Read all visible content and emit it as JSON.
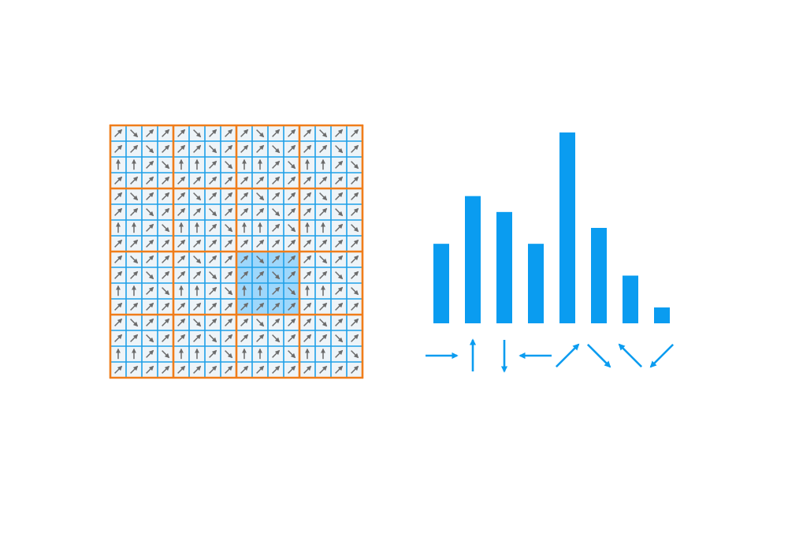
{
  "colors": {
    "background": "#ffffff",
    "cell_fill": "#eef4f8",
    "cell_grid": "#1fa0e8",
    "block_grid": "#f07d1a",
    "gradient_arrow": "#6b6b6b",
    "highlight_fill": "#8fd1fb",
    "histogram": "#0a9cf0"
  },
  "grid": {
    "cells": 16,
    "block_size": 4,
    "highlight_block": {
      "row": 2,
      "col": 2
    },
    "tile_pattern": [
      [
        "ne",
        "se",
        "ne",
        "ne"
      ],
      [
        "ne",
        "ne",
        "se",
        "ne"
      ],
      [
        "n",
        "n",
        "ne",
        "se"
      ],
      [
        "ne",
        "ne",
        "ne",
        "ne"
      ]
    ]
  },
  "histogram": {
    "bins": [
      {
        "direction": "e",
        "value": 5,
        "arrow_icon": "arrow-right-icon"
      },
      {
        "direction": "n",
        "value": 8,
        "arrow_icon": "arrow-up-icon"
      },
      {
        "direction": "s",
        "value": 7,
        "arrow_icon": "arrow-down-icon"
      },
      {
        "direction": "w",
        "value": 5,
        "arrow_icon": "arrow-left-icon"
      },
      {
        "direction": "ne",
        "value": 12,
        "arrow_icon": "arrow-up-right-icon"
      },
      {
        "direction": "se",
        "value": 6,
        "arrow_icon": "arrow-down-right-icon"
      },
      {
        "direction": "nw",
        "value": 3,
        "arrow_icon": "arrow-up-left-icon"
      },
      {
        "direction": "sw",
        "value": 1,
        "arrow_icon": "arrow-down-left-icon"
      }
    ]
  }
}
